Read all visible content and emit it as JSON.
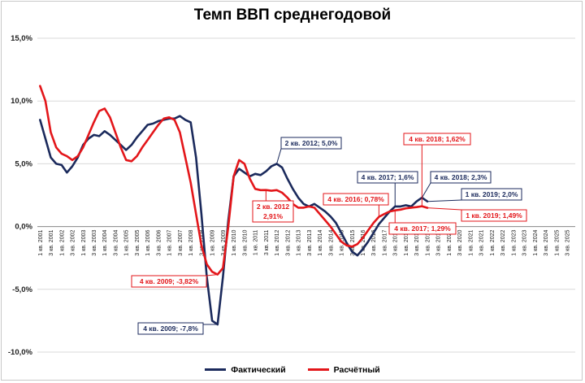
{
  "chart_data": {
    "type": "line",
    "title": "Темп ВВП среднегодовой",
    "xlabel": "",
    "ylabel": "",
    "ylim": [
      -10,
      15
    ],
    "yticks": [
      15,
      10,
      5,
      0,
      -5,
      -10
    ],
    "ytick_labels": [
      "15,0%",
      "10,0%",
      "5,0%",
      "0,0%",
      "-5,0%",
      "-10,0%"
    ],
    "grid": true,
    "legend_position": "bottom",
    "categories_start_year": 2001,
    "categories_end_year": 2025,
    "series": [
      {
        "name": "Фактический",
        "color": "#1b2a5c",
        "points": [
          [
            2001.0,
            8.5
          ],
          [
            2001.25,
            7.0
          ],
          [
            2001.5,
            5.5
          ],
          [
            2001.75,
            5.0
          ],
          [
            2002.0,
            4.9
          ],
          [
            2002.25,
            4.3
          ],
          [
            2002.5,
            4.8
          ],
          [
            2002.75,
            5.5
          ],
          [
            2003.0,
            6.5
          ],
          [
            2003.25,
            7.0
          ],
          [
            2003.5,
            7.3
          ],
          [
            2003.75,
            7.2
          ],
          [
            2004.0,
            7.6
          ],
          [
            2004.25,
            7.3
          ],
          [
            2004.5,
            6.9
          ],
          [
            2004.75,
            6.5
          ],
          [
            2005.0,
            6.1
          ],
          [
            2005.25,
            6.5
          ],
          [
            2005.5,
            7.1
          ],
          [
            2005.75,
            7.6
          ],
          [
            2006.0,
            8.1
          ],
          [
            2006.25,
            8.2
          ],
          [
            2006.5,
            8.4
          ],
          [
            2006.75,
            8.5
          ],
          [
            2007.0,
            8.6
          ],
          [
            2007.25,
            8.6
          ],
          [
            2007.5,
            8.8
          ],
          [
            2007.75,
            8.5
          ],
          [
            2008.0,
            8.3
          ],
          [
            2008.25,
            5.5
          ],
          [
            2008.5,
            1.0
          ],
          [
            2008.75,
            -4.0
          ],
          [
            2009.0,
            -7.5
          ],
          [
            2009.25,
            -7.8
          ],
          [
            2009.5,
            -4.0
          ],
          [
            2009.75,
            0.5
          ],
          [
            2010.0,
            4.0
          ],
          [
            2010.25,
            4.6
          ],
          [
            2010.5,
            4.3
          ],
          [
            2010.75,
            4.0
          ],
          [
            2011.0,
            4.2
          ],
          [
            2011.25,
            4.1
          ],
          [
            2011.5,
            4.4
          ],
          [
            2011.75,
            4.8
          ],
          [
            2012.0,
            5.0
          ],
          [
            2012.25,
            4.7
          ],
          [
            2012.5,
            3.8
          ],
          [
            2012.75,
            3.0
          ],
          [
            2013.0,
            2.3
          ],
          [
            2013.25,
            1.8
          ],
          [
            2013.5,
            1.6
          ],
          [
            2013.75,
            1.8
          ],
          [
            2014.0,
            1.5
          ],
          [
            2014.25,
            1.2
          ],
          [
            2014.5,
            0.8
          ],
          [
            2014.75,
            0.3
          ],
          [
            2015.0,
            -0.5
          ],
          [
            2015.25,
            -1.3
          ],
          [
            2015.5,
            -2.0
          ],
          [
            2015.75,
            -2.3
          ],
          [
            2016.0,
            -1.8
          ],
          [
            2016.25,
            -1.2
          ],
          [
            2016.5,
            -0.5
          ],
          [
            2016.75,
            0.2
          ],
          [
            2017.0,
            0.7
          ],
          [
            2017.25,
            1.2
          ],
          [
            2017.5,
            1.6
          ],
          [
            2017.75,
            1.6
          ],
          [
            2018.0,
            1.7
          ],
          [
            2018.25,
            1.6
          ],
          [
            2018.5,
            2.0
          ],
          [
            2018.75,
            2.3
          ],
          [
            2019.0,
            2.0
          ]
        ]
      },
      {
        "name": "Расчётный",
        "color": "#e3161a",
        "points": [
          [
            2001.0,
            11.2
          ],
          [
            2001.25,
            10.0
          ],
          [
            2001.5,
            7.5
          ],
          [
            2001.75,
            6.3
          ],
          [
            2002.0,
            5.8
          ],
          [
            2002.25,
            5.6
          ],
          [
            2002.5,
            5.3
          ],
          [
            2002.75,
            5.6
          ],
          [
            2003.0,
            6.3
          ],
          [
            2003.25,
            7.3
          ],
          [
            2003.5,
            8.3
          ],
          [
            2003.75,
            9.2
          ],
          [
            2004.0,
            9.4
          ],
          [
            2004.25,
            8.7
          ],
          [
            2004.5,
            7.5
          ],
          [
            2004.75,
            6.3
          ],
          [
            2005.0,
            5.3
          ],
          [
            2005.25,
            5.2
          ],
          [
            2005.5,
            5.6
          ],
          [
            2005.75,
            6.3
          ],
          [
            2006.0,
            6.9
          ],
          [
            2006.25,
            7.5
          ],
          [
            2006.5,
            8.1
          ],
          [
            2006.75,
            8.6
          ],
          [
            2007.0,
            8.7
          ],
          [
            2007.25,
            8.5
          ],
          [
            2007.5,
            7.5
          ],
          [
            2007.75,
            5.5
          ],
          [
            2008.0,
            3.5
          ],
          [
            2008.25,
            1.0
          ],
          [
            2008.5,
            -1.5
          ],
          [
            2008.75,
            -3.0
          ],
          [
            2009.0,
            -3.6
          ],
          [
            2009.25,
            -3.82
          ],
          [
            2009.5,
            -3.3
          ],
          [
            2009.75,
            0.0
          ],
          [
            2010.0,
            4.0
          ],
          [
            2010.25,
            5.3
          ],
          [
            2010.5,
            5.0
          ],
          [
            2010.75,
            3.8
          ],
          [
            2011.0,
            3.0
          ],
          [
            2011.25,
            2.9
          ],
          [
            2011.5,
            2.91
          ],
          [
            2011.75,
            2.85
          ],
          [
            2012.0,
            2.9
          ],
          [
            2012.25,
            2.7
          ],
          [
            2012.5,
            2.3
          ],
          [
            2012.75,
            1.8
          ],
          [
            2013.0,
            1.5
          ],
          [
            2013.25,
            1.5
          ],
          [
            2013.5,
            1.6
          ],
          [
            2013.75,
            1.5
          ],
          [
            2014.0,
            1.0
          ],
          [
            2014.25,
            0.5
          ],
          [
            2014.5,
            0.0
          ],
          [
            2014.75,
            -0.6
          ],
          [
            2015.0,
            -1.2
          ],
          [
            2015.25,
            -1.5
          ],
          [
            2015.5,
            -1.6
          ],
          [
            2015.75,
            -1.4
          ],
          [
            2016.0,
            -0.9
          ],
          [
            2016.25,
            -0.3
          ],
          [
            2016.5,
            0.3
          ],
          [
            2016.75,
            0.78
          ],
          [
            2017.0,
            1.0
          ],
          [
            2017.25,
            1.2
          ],
          [
            2017.5,
            1.29
          ],
          [
            2017.75,
            1.35
          ],
          [
            2018.0,
            1.45
          ],
          [
            2018.25,
            1.5
          ],
          [
            2018.5,
            1.55
          ],
          [
            2018.75,
            1.62
          ],
          [
            2019.0,
            1.49
          ]
        ]
      }
    ],
    "annotations": [
      {
        "text": "2 кв. 2012; 5,0%",
        "series": "Фактический",
        "x": 2012.0,
        "y": 5.0
      },
      {
        "text": "4 кв. 2009; -7,8%",
        "series": "Фактический",
        "x": 2009.25,
        "y": -7.8
      },
      {
        "text": "4 кв. 2017; 1,6%",
        "series": "Фактический",
        "x": 2017.5,
        "y": 1.6
      },
      {
        "text": "4 кв. 2018; 2,3%",
        "series": "Фактический",
        "x": 2018.75,
        "y": 2.3
      },
      {
        "text": "1 кв. 2019; 2,0%",
        "series": "Фактический",
        "x": 2019.0,
        "y": 2.0
      },
      {
        "text": "2 кв. 2012",
        "text2": "2,91%",
        "series": "Расчётный",
        "x": 2011.5,
        "y": 2.91
      },
      {
        "text": "4 кв. 2009; -3,82%",
        "series": "Расчётный",
        "x": 2009.25,
        "y": -3.82
      },
      {
        "text": "4 кв. 2016; 0,78%",
        "series": "Расчётный",
        "x": 2016.75,
        "y": 0.78
      },
      {
        "text": "4 кв. 2017; 1,29%",
        "series": "Расчётный",
        "x": 2017.5,
        "y": 1.29
      },
      {
        "text": "4 кв. 2018; 1,62%",
        "series": "Расчётный",
        "x": 2018.75,
        "y": 1.62
      },
      {
        "text": "1 кв. 2019; 1,49%",
        "series": "Расчётный",
        "x": 2019.0,
        "y": 1.49
      }
    ]
  }
}
